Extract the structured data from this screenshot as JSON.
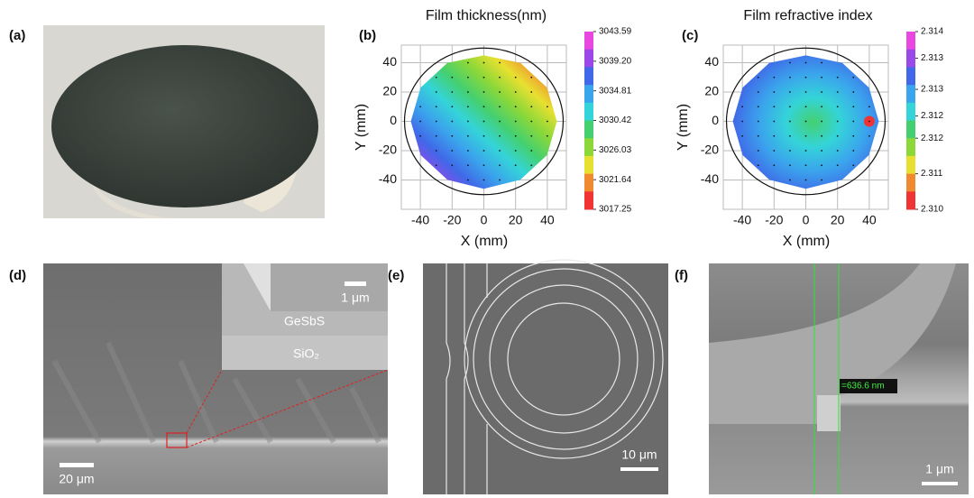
{
  "panel_labels": [
    "(a)",
    "(b)",
    "(c)",
    "(d)",
    "(e)",
    "(f)"
  ],
  "chart_data": [
    {
      "type": "contour",
      "title": "Film thickness(nm)",
      "x_label": "X (mm)",
      "y_label": "Y (mm)",
      "xlim": [
        -52,
        52
      ],
      "ylim": [
        -60,
        52
      ],
      "xticks": [
        -40,
        -20,
        0,
        20,
        40
      ],
      "yticks": [
        -40,
        -20,
        0,
        20,
        40
      ],
      "grid": true,
      "colorbar": {
        "clim": [
          3017.25,
          3043.59
        ],
        "ticks": [
          3043.59,
          {
            "value": 3039.2,
            "label": "3039.20"
          },
          3034.81,
          3030.42,
          3026.03,
          3021.64,
          3017.25
        ],
        "colors": [
          "#e848e0",
          "#9a48e8",
          "#4068e8",
          "#3aa4ec",
          "#34d4d8",
          "#44d070",
          "#8cd838",
          "#e8e030",
          "#f08a30",
          "#f03434"
        ]
      }
    },
    {
      "type": "contour",
      "title": "Film refractive index",
      "x_label": "X (mm)",
      "y_label": "Y (mm)",
      "xlim": [
        -52,
        52
      ],
      "ylim": [
        -60,
        52
      ],
      "xticks": [
        -40,
        -20,
        0,
        20,
        40
      ],
      "yticks": [
        -40,
        -20,
        0,
        20,
        40
      ],
      "grid": true,
      "colorbar": {
        "clim": [
          2.31,
          2.314
        ],
        "ticks": [
          2.314,
          {
            "value": 2.3134,
            "label": "2.313"
          },
          {
            "value": 2.3127,
            "label": "2.313"
          },
          {
            "value": 2.3121,
            "label": "2.312"
          },
          {
            "value": 2.3116,
            "label": "2.312"
          },
          {
            "value": 2.3108,
            "label": "2.311"
          },
          {
            "value": 2.31,
            "label": "2.310"
          }
        ],
        "colors": [
          "#e848e0",
          "#9a48e8",
          "#4068e8",
          "#3aa4ec",
          "#34d4d8",
          "#44d070",
          "#8cd838",
          "#e8e030",
          "#f08a30",
          "#f03434"
        ]
      }
    }
  ],
  "panel_d": {
    "inset_layers": [
      "GeSbS",
      "SiO₂"
    ],
    "inset_scale_bar": "1 μm",
    "scale_bar": "20 μm"
  },
  "panel_e": {
    "scale_bar": "10 μm"
  },
  "panel_f": {
    "measurement": "=636.6 nm",
    "scale_bar": "1 μm"
  }
}
